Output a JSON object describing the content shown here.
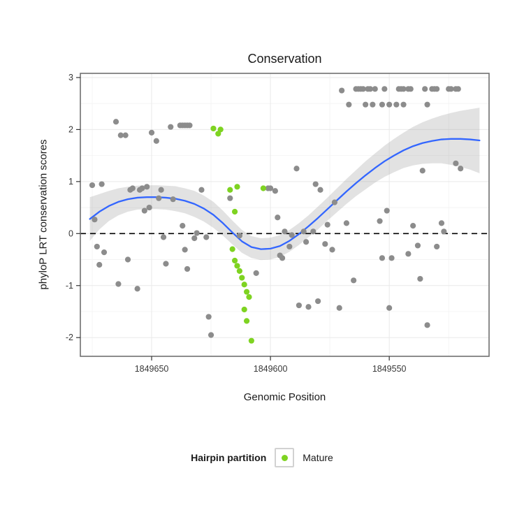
{
  "title": "Conservation",
  "axes": {
    "x_label": "Genomic Position",
    "y_label": "phyloP LRT conservation scores",
    "x_tick_labels": [
      "1849650",
      "1849600",
      "1849550"
    ],
    "x_tick_values": [
      1849650,
      1849600,
      1849550
    ],
    "x_minor": [
      1849675,
      1849625,
      1849575,
      1849525
    ],
    "y_tick_labels": [
      "3",
      "2",
      "1",
      "0",
      "-1",
      "-2"
    ],
    "y_tick_values": [
      3,
      2,
      1,
      0,
      -1,
      -2
    ],
    "y_minor": [
      2.5,
      1.5,
      0.5,
      -0.5,
      -1.5
    ],
    "x_domain": [
      1849680,
      1849508
    ],
    "y_domain_min": -2.36,
    "y_domain_max": 3.08,
    "x_reversed": true
  },
  "legend": {
    "title": "Hairpin partition",
    "items": [
      {
        "label": "Mature",
        "color": "#7ed321"
      }
    ]
  },
  "style": {
    "gray_point": "#8c8c8c",
    "mature_point": "#7ed321",
    "smooth_line": "#3366ff",
    "ribbon": "#9e9e9e",
    "reference_line": "#000000",
    "panel_border": "#707070",
    "grid_major": "#e9e9e9",
    "grid_minor": "#f4f4f4",
    "tick_color": "#333333",
    "tick_label_color": "#383838"
  },
  "chart_data": {
    "type": "scatter",
    "title": "Conservation",
    "xlabel": "Genomic Position",
    "ylabel": "phyloP LRT conservation scores",
    "x_axis_reversed": true,
    "xlim": [
      1849680,
      1849508
    ],
    "ylim": [
      -2.36,
      3.08
    ],
    "reference_line_y": 0,
    "legend_position": "bottom",
    "series": [
      {
        "name": "conservation-scores",
        "color": "#8c8c8c",
        "points": [
          [
            1849675,
            0.93
          ],
          [
            1849674,
            0.27
          ],
          [
            1849673,
            -0.25
          ],
          [
            1849672,
            -0.6
          ],
          [
            1849671,
            0.95
          ],
          [
            1849670,
            -0.36
          ],
          [
            1849665,
            2.15
          ],
          [
            1849664,
            -0.97
          ],
          [
            1849663,
            1.89
          ],
          [
            1849661,
            1.89
          ],
          [
            1849660,
            -0.5
          ],
          [
            1849659,
            0.84
          ],
          [
            1849658,
            0.87
          ],
          [
            1849656,
            -1.06
          ],
          [
            1849655,
            0.84
          ],
          [
            1849654,
            0.87
          ],
          [
            1849653,
            0.44
          ],
          [
            1849652,
            0.9
          ],
          [
            1849651,
            0.5
          ],
          [
            1849650,
            1.94
          ],
          [
            1849648,
            1.78
          ],
          [
            1849647,
            0.68
          ],
          [
            1849646,
            0.84
          ],
          [
            1849645,
            -0.07
          ],
          [
            1849644,
            -0.58
          ],
          [
            1849642,
            2.05
          ],
          [
            1849641,
            0.66
          ],
          [
            1849638,
            2.08
          ],
          [
            1849637,
            2.08
          ],
          [
            1849636,
            2.08
          ],
          [
            1849635,
            2.08
          ],
          [
            1849634,
            2.08
          ],
          [
            1849637,
            0.15
          ],
          [
            1849636,
            -0.31
          ],
          [
            1849635,
            -0.68
          ],
          [
            1849632,
            -0.09
          ],
          [
            1849631,
            0.01
          ],
          [
            1849629,
            0.84
          ],
          [
            1849627,
            -0.07
          ],
          [
            1849626,
            -1.6
          ],
          [
            1849625,
            -1.95
          ],
          [
            1849617,
            0.68
          ],
          [
            1849613,
            -0.04
          ],
          [
            1849606,
            -0.76
          ],
          [
            1849601,
            0.87
          ],
          [
            1849600,
            0.87
          ],
          [
            1849598,
            0.82
          ],
          [
            1849597,
            0.31
          ],
          [
            1849596,
            -0.42
          ],
          [
            1849595,
            -0.47
          ],
          [
            1849594,
            0.04
          ],
          [
            1849592,
            -0.25
          ],
          [
            1849591,
            -0.03
          ],
          [
            1849589,
            1.25
          ],
          [
            1849588,
            -1.38
          ],
          [
            1849586,
            0.04
          ],
          [
            1849585,
            -0.16
          ],
          [
            1849584,
            -1.41
          ],
          [
            1849582,
            0.04
          ],
          [
            1849581,
            0.95
          ],
          [
            1849580,
            -1.3
          ],
          [
            1849579,
            0.84
          ],
          [
            1849577,
            -0.2
          ],
          [
            1849576,
            0.17
          ],
          [
            1849574,
            -0.31
          ],
          [
            1849573,
            0.6
          ],
          [
            1849571,
            -1.43
          ],
          [
            1849570,
            2.75
          ],
          [
            1849568,
            0.2
          ],
          [
            1849567,
            2.48
          ],
          [
            1849565,
            -0.9
          ],
          [
            1849564,
            2.78
          ],
          [
            1849563,
            2.78
          ],
          [
            1849562,
            2.78
          ],
          [
            1849561,
            2.78
          ],
          [
            1849559,
            2.78
          ],
          [
            1849558,
            2.78
          ],
          [
            1849556,
            2.78
          ],
          [
            1849552,
            2.78
          ],
          [
            1849560,
            2.48
          ],
          [
            1849557,
            2.48
          ],
          [
            1849553,
            2.48
          ],
          [
            1849550,
            2.48
          ],
          [
            1849547,
            2.48
          ],
          [
            1849554,
            0.24
          ],
          [
            1849553,
            -0.47
          ],
          [
            1849551,
            0.44
          ],
          [
            1849550,
            -1.43
          ],
          [
            1849549,
            -0.47
          ],
          [
            1849546,
            2.78
          ],
          [
            1849545,
            2.78
          ],
          [
            1849544,
            2.78
          ],
          [
            1849542,
            2.78
          ],
          [
            1849541,
            2.78
          ],
          [
            1849544,
            2.48
          ],
          [
            1849542,
            -0.39
          ],
          [
            1849540,
            0.15
          ],
          [
            1849538,
            -0.23
          ],
          [
            1849537,
            -0.87
          ],
          [
            1849536,
            1.21
          ],
          [
            1849535,
            2.78
          ],
          [
            1849534,
            2.48
          ],
          [
            1849532,
            2.78
          ],
          [
            1849531,
            2.78
          ],
          [
            1849530,
            2.78
          ],
          [
            1849530,
            -0.25
          ],
          [
            1849534,
            -1.76
          ],
          [
            1849528,
            0.2
          ],
          [
            1849527,
            0.04
          ],
          [
            1849525,
            2.78
          ],
          [
            1849524,
            2.78
          ],
          [
            1849522,
            2.78
          ],
          [
            1849521,
            2.78
          ],
          [
            1849522,
            1.35
          ],
          [
            1849520,
            1.25
          ]
        ]
      },
      {
        "name": "Mature",
        "color": "#7ed321",
        "points": [
          [
            1849624,
            2.02
          ],
          [
            1849622,
            1.92
          ],
          [
            1849621,
            2.0
          ],
          [
            1849617,
            0.84
          ],
          [
            1849614,
            0.9
          ],
          [
            1849615,
            0.42
          ],
          [
            1849616,
            -0.3
          ],
          [
            1849615,
            -0.52
          ],
          [
            1849614,
            -0.62
          ],
          [
            1849613,
            -0.72
          ],
          [
            1849612,
            -0.85
          ],
          [
            1849611,
            -0.98
          ],
          [
            1849610,
            -1.12
          ],
          [
            1849609,
            -1.22
          ],
          [
            1849611,
            -1.46
          ],
          [
            1849610,
            -1.68
          ],
          [
            1849608,
            -2.06
          ],
          [
            1849603,
            0.87
          ]
        ]
      }
    ],
    "smooth": {
      "color": "#3366ff",
      "x": [
        1849676,
        1849672,
        1849668,
        1849664,
        1849660,
        1849656,
        1849652,
        1849648,
        1849644,
        1849640,
        1849636,
        1849632,
        1849628,
        1849624,
        1849620,
        1849616,
        1849612,
        1849608,
        1849604,
        1849600,
        1849596,
        1849592,
        1849588,
        1849584,
        1849580,
        1849576,
        1849572,
        1849568,
        1849564,
        1849560,
        1849556,
        1849552,
        1849548,
        1849544,
        1849540,
        1849536,
        1849532,
        1849528,
        1849524,
        1849520,
        1849516,
        1849512
      ],
      "y": [
        0.28,
        0.42,
        0.53,
        0.61,
        0.66,
        0.69,
        0.7,
        0.7,
        0.69,
        0.67,
        0.63,
        0.57,
        0.48,
        0.36,
        0.2,
        0.02,
        -0.15,
        -0.26,
        -0.3,
        -0.29,
        -0.24,
        -0.14,
        -0.01,
        0.14,
        0.3,
        0.47,
        0.64,
        0.81,
        0.97,
        1.12,
        1.26,
        1.39,
        1.5,
        1.6,
        1.68,
        1.74,
        1.78,
        1.81,
        1.82,
        1.82,
        1.81,
        1.79
      ],
      "ci_upper": [
        0.7,
        0.76,
        0.82,
        0.87,
        0.9,
        0.92,
        0.93,
        0.93,
        0.92,
        0.91,
        0.87,
        0.82,
        0.73,
        0.61,
        0.44,
        0.25,
        0.07,
        -0.05,
        -0.09,
        -0.08,
        -0.03,
        0.07,
        0.2,
        0.35,
        0.52,
        0.69,
        0.87,
        1.05,
        1.22,
        1.39,
        1.54,
        1.69,
        1.82,
        1.94,
        2.05,
        2.14,
        2.21,
        2.27,
        2.32,
        2.36,
        2.39,
        2.42
      ],
      "ci_lower": [
        -0.14,
        0.08,
        0.24,
        0.35,
        0.42,
        0.46,
        0.47,
        0.47,
        0.46,
        0.43,
        0.39,
        0.32,
        0.23,
        0.11,
        -0.04,
        -0.21,
        -0.37,
        -0.47,
        -0.51,
        -0.5,
        -0.45,
        -0.35,
        -0.22,
        -0.07,
        0.08,
        0.25,
        0.41,
        0.57,
        0.72,
        0.85,
        0.98,
        1.09,
        1.18,
        1.26,
        1.31,
        1.34,
        1.35,
        1.35,
        1.32,
        1.28,
        1.23,
        1.16
      ]
    }
  }
}
